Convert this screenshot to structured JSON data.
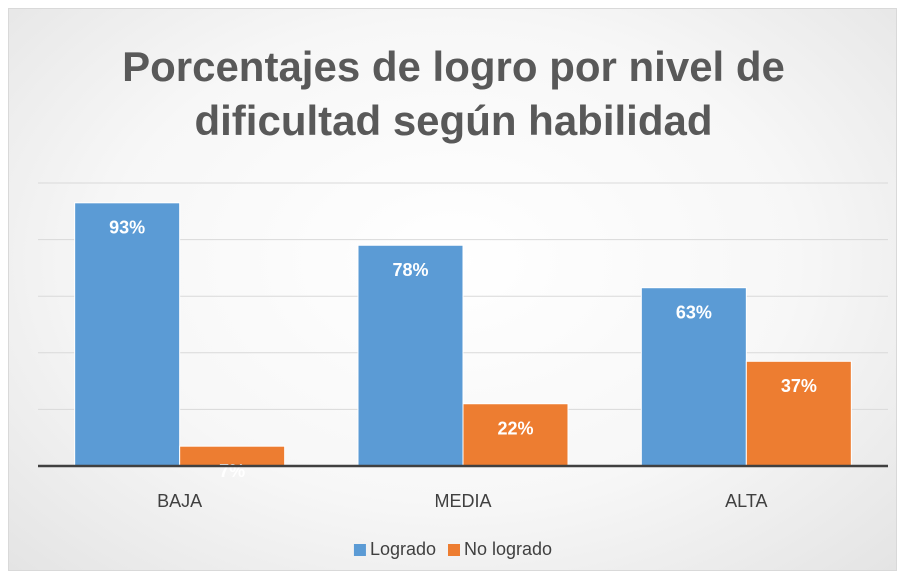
{
  "chart_data": {
    "type": "bar",
    "title": "Porcentajes de logro por nivel de dificultad según habilidad",
    "categories": [
      "BAJA",
      "MEDIA",
      "ALTA"
    ],
    "series": [
      {
        "name": "Logrado",
        "color": "#5b9bd5",
        "values": [
          93,
          78,
          63
        ],
        "value_labels": [
          "93%",
          "78%",
          "63%"
        ]
      },
      {
        "name": "No logrado",
        "color": "#ed7d31",
        "values": [
          7,
          22,
          37
        ],
        "value_labels": [
          "7%",
          "22%",
          "37%"
        ]
      }
    ],
    "ylim": [
      0,
      100
    ],
    "yticks": [
      0,
      20,
      40,
      60,
      80,
      100
    ],
    "show_ytick_labels": false,
    "grid": true,
    "legend": "bottom"
  }
}
